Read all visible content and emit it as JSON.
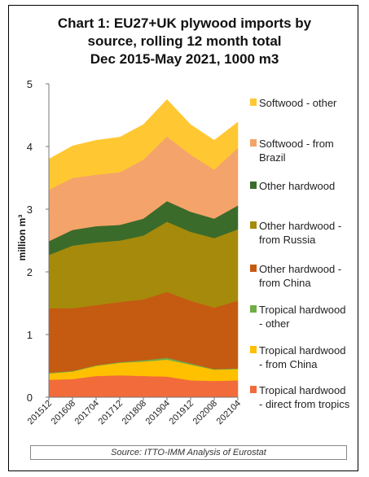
{
  "chart_data": {
    "type": "area",
    "stacked": true,
    "title_lines": [
      "Chart 1: EU27+UK plywood imports by",
      "source, rolling 12 month total",
      "Dec 2015-May 2021, 1000 m3"
    ],
    "ylabel": "million m³",
    "ylim": [
      0,
      5
    ],
    "yticks": [
      "0",
      "1",
      "2",
      "3",
      "4",
      "5"
    ],
    "xtick_labels": [
      "201512",
      "201608",
      "201704",
      "201712",
      "201808",
      "201904",
      "201912",
      "202008",
      "202104"
    ],
    "x_anchor_months": [
      "201512",
      "201608",
      "201704",
      "201712",
      "201808",
      "201904",
      "201912",
      "202008",
      "202105"
    ],
    "grid": false,
    "legend_position": "right",
    "source": "Source: ITTO-IMM Analysis of Eurostat",
    "series": [
      {
        "name": "Tropical hardwood - direct from tropics",
        "color": "#f26b3a",
        "values": [
          0.28,
          0.29,
          0.34,
          0.35,
          0.34,
          0.33,
          0.27,
          0.26,
          0.27
        ]
      },
      {
        "name": "Tropical hardwood - from China",
        "color": "#ffc000",
        "values": [
          0.1,
          0.12,
          0.16,
          0.2,
          0.23,
          0.27,
          0.25,
          0.18,
          0.18
        ]
      },
      {
        "name": "Tropical hardwood - other",
        "color": "#70ad47",
        "values": [
          0.01,
          0.01,
          0.01,
          0.01,
          0.02,
          0.03,
          0.02,
          0.01,
          0.01
        ]
      },
      {
        "name": "Other hardwood - from China",
        "color": "#c55a11",
        "values": [
          1.03,
          1.0,
          0.96,
          0.96,
          0.97,
          1.05,
          1.0,
          0.98,
          1.08
        ]
      },
      {
        "name": "Other hardwood - from Russia",
        "color": "#a68a0b",
        "values": [
          0.85,
          1.0,
          1.0,
          0.98,
          1.02,
          1.12,
          1.1,
          1.11,
          1.14
        ]
      },
      {
        "name": "Other hardwood",
        "color": "#3a6b2a",
        "values": [
          0.22,
          0.25,
          0.26,
          0.25,
          0.27,
          0.33,
          0.32,
          0.31,
          0.38
        ]
      },
      {
        "name": "Softwood - from Brazil",
        "color": "#f4a36a",
        "values": [
          0.82,
          0.83,
          0.82,
          0.84,
          0.94,
          1.03,
          0.91,
          0.78,
          0.92
        ]
      },
      {
        "name": "Softwood - other",
        "color": "#ffc832",
        "values": [
          0.49,
          0.51,
          0.55,
          0.56,
          0.56,
          0.59,
          0.48,
          0.47,
          0.41
        ]
      }
    ]
  },
  "legend_lines": [
    [
      "Softwood - other"
    ],
    [
      "Softwood - from",
      "Brazil"
    ],
    [
      "Other hardwood"
    ],
    [
      "Other hardwood -",
      "from Russia"
    ],
    [
      "Other hardwood -",
      "from China"
    ],
    [
      "Tropical hardwood",
      "- other"
    ],
    [
      "Tropical hardwood",
      "- from China"
    ],
    [
      "Tropical hardwood",
      "- direct from tropics"
    ]
  ]
}
